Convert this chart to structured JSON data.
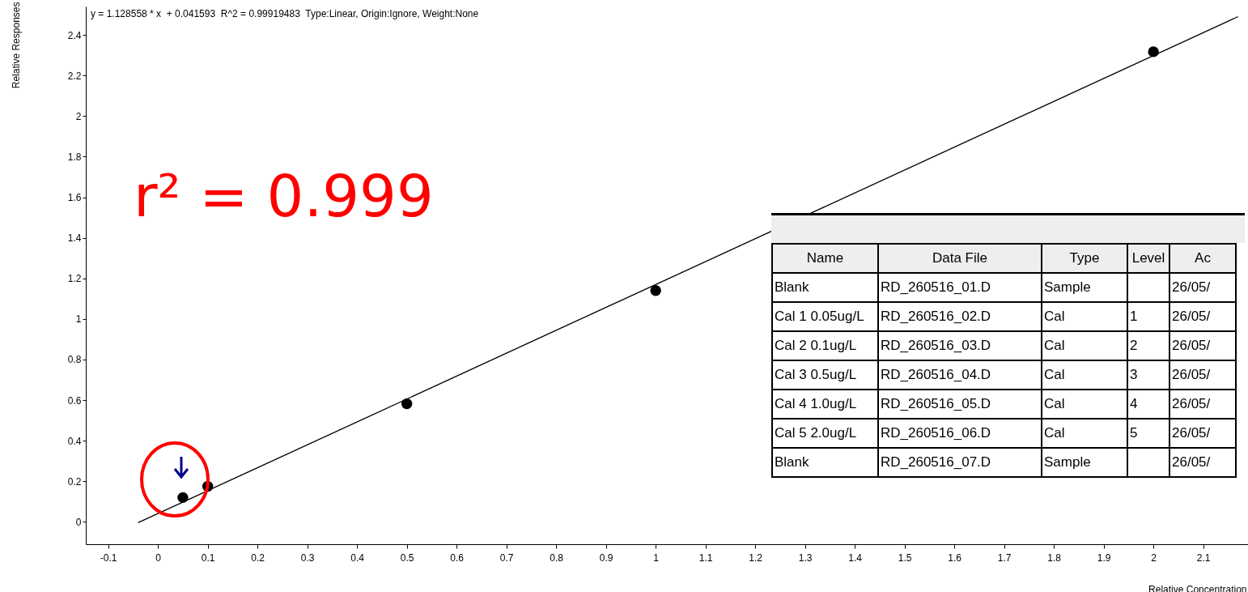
{
  "chart_data": {
    "type": "scatter",
    "xlabel": "Relative Concentration",
    "ylabel": "Relative Responses",
    "xlim": [
      -0.145,
      2.19
    ],
    "ylim": [
      -0.11,
      2.54
    ],
    "xticks": [
      -0.1,
      0,
      0.1,
      0.2,
      0.3,
      0.4,
      0.5,
      0.6,
      0.7,
      0.8,
      0.9,
      1,
      1.1,
      1.2,
      1.3,
      1.4,
      1.5,
      1.6,
      1.7,
      1.8,
      1.9,
      2,
      2.1
    ],
    "yticks": [
      0,
      0.2,
      0.4,
      0.6,
      0.8,
      1,
      1.2,
      1.4,
      1.6,
      1.8,
      2,
      2.2,
      2.4
    ],
    "grid": false,
    "series": [
      {
        "type": "scatter",
        "marker": "circle",
        "color": "#000000",
        "x": [
          0.05,
          0.1,
          0.5,
          1,
          2
        ],
        "values": [
          0.12,
          0.175,
          0.582,
          1.14,
          2.317
        ]
      },
      {
        "type": "line",
        "color": "#000000",
        "x": [
          -0.04,
          2.17
        ],
        "values": [
          -0.004,
          2.49
        ]
      }
    ],
    "annotations": [
      "y = 1.128558 * x  + 0.041593  R^2 = 0.99919483  Type:Linear, Origin:Ignore, Weight:None",
      "r² = 0.999",
      "Name",
      "Data File",
      "Type",
      "Level",
      "Ac",
      "Blank",
      "RD_260516_01.D",
      "Sample",
      null,
      "26/05/",
      "Cal 1 0.05ug/L",
      "RD_260516_02.D",
      "Cal",
      "1",
      "26/05/",
      "Cal 2 0.1ug/L",
      "RD_260516_03.D",
      "Cal",
      "2",
      "26/05/",
      "Cal 3 0.5ug/L",
      "RD_260516_04.D",
      "Cal",
      "3",
      "26/05/",
      "Cal 4 1.0ug/L",
      "RD_260516_05.D",
      "Cal",
      "4",
      "26/05/",
      "Cal 5 2.0ug/L",
      "RD_260516_06.D",
      "Cal",
      "5",
      "26/05/",
      "Blank",
      "RD_260516_07.D",
      "Sample",
      null,
      "26/05/"
    ]
  }
}
